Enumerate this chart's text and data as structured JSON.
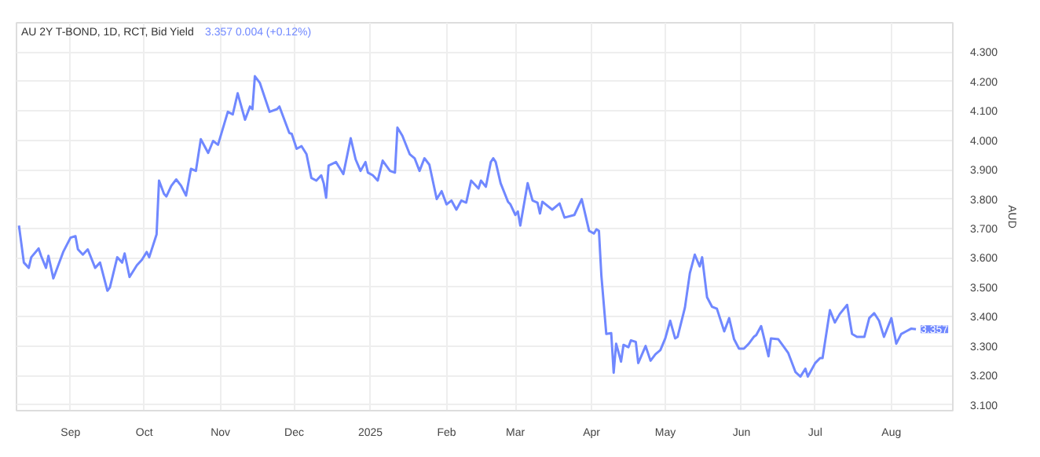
{
  "chart_data": {
    "type": "line",
    "title": "AU 2Y T-BOND, 1D, RCT, Bid Yield",
    "subtitle": "3.357  0.004 (+0.12%)",
    "ylabel": "AUD",
    "x": [
      "2024-08-11",
      "2024-08-13",
      "2024-08-15",
      "2024-08-16",
      "2024-08-19",
      "2024-08-20",
      "2024-08-22",
      "2024-08-23",
      "2024-08-25",
      "2024-08-29",
      "2024-09-01",
      "2024-09-03",
      "2024-09-04",
      "2024-09-06",
      "2024-09-08",
      "2024-09-11",
      "2024-09-13",
      "2024-09-16",
      "2024-09-17",
      "2024-09-20",
      "2024-09-22",
      "2024-09-23",
      "2024-09-25",
      "2024-09-28",
      "2024-09-30",
      "2024-10-02",
      "2024-10-03",
      "2024-10-06",
      "2024-10-07",
      "2024-10-09",
      "2024-10-10",
      "2024-10-12",
      "2024-10-14",
      "2024-10-16",
      "2024-10-18",
      "2024-10-20",
      "2024-10-22",
      "2024-10-24",
      "2024-10-27",
      "2024-10-29",
      "2024-10-31",
      "2024-11-04",
      "2024-11-06",
      "2024-11-08",
      "2024-11-11",
      "2024-11-13",
      "2024-11-14",
      "2024-11-15",
      "2024-11-17",
      "2024-11-21",
      "2024-11-24",
      "2024-11-25",
      "2024-11-29",
      "2024-11-30",
      "2024-12-02",
      "2024-12-04",
      "2024-12-06",
      "2024-12-08",
      "2024-12-10",
      "2024-12-12",
      "2024-12-13",
      "2024-12-14",
      "2024-12-15",
      "2024-12-18",
      "2024-12-20",
      "2024-12-21",
      "2024-12-24",
      "2024-12-26",
      "2024-12-28",
      "2024-12-30",
      "2024-12-31",
      "2025-01-02",
      "2025-01-04",
      "2025-01-06",
      "2025-01-09",
      "2025-01-11",
      "2025-01-12",
      "2025-01-14",
      "2025-01-17",
      "2025-01-19",
      "2025-01-21",
      "2025-01-23",
      "2025-01-25",
      "2025-01-28",
      "2025-01-30",
      "2025-02-01",
      "2025-02-03",
      "2025-02-05",
      "2025-02-07",
      "2025-02-09",
      "2025-02-11",
      "2025-02-14",
      "2025-02-15",
      "2025-02-17",
      "2025-02-19",
      "2025-02-20",
      "2025-02-21",
      "2025-02-23",
      "2025-02-26",
      "2025-02-27",
      "2025-03-01",
      "2025-03-02",
      "2025-03-03",
      "2025-03-06",
      "2025-03-08",
      "2025-03-10",
      "2025-03-11",
      "2025-03-12",
      "2025-03-16",
      "2025-03-19",
      "2025-03-21",
      "2025-03-25",
      "2025-03-28",
      "2025-03-31",
      "2025-04-02",
      "2025-04-03",
      "2025-04-04",
      "2025-04-05",
      "2025-04-07",
      "2025-04-09",
      "2025-04-10",
      "2025-04-11",
      "2025-04-13",
      "2025-04-14",
      "2025-04-16",
      "2025-04-17",
      "2025-04-19",
      "2025-04-20",
      "2025-04-23",
      "2025-04-25",
      "2025-04-27",
      "2025-04-29",
      "2025-05-01",
      "2025-05-03",
      "2025-05-05",
      "2025-05-06",
      "2025-05-09",
      "2025-05-11",
      "2025-05-13",
      "2025-05-15",
      "2025-05-16",
      "2025-05-18",
      "2025-05-20",
      "2025-05-22",
      "2025-05-25",
      "2025-05-27",
      "2025-05-29",
      "2025-05-31",
      "2025-06-02",
      "2025-06-04",
      "2025-06-06",
      "2025-06-07",
      "2025-06-09",
      "2025-06-12",
      "2025-06-13",
      "2025-06-16",
      "2025-06-18",
      "2025-06-20",
      "2025-06-23",
      "2025-06-25",
      "2025-06-27",
      "2025-06-28",
      "2025-07-01",
      "2025-07-03",
      "2025-07-04",
      "2025-07-06",
      "2025-07-07",
      "2025-07-09",
      "2025-07-11",
      "2025-07-14",
      "2025-07-16",
      "2025-07-18",
      "2025-07-21",
      "2025-07-23",
      "2025-07-25",
      "2025-07-27",
      "2025-07-29",
      "2025-08-01",
      "2025-08-03",
      "2025-08-05",
      "2025-08-07",
      "2025-08-09",
      "2025-08-11"
    ],
    "series": [
      {
        "color": "#7088ff",
        "values": [
          3.71,
          3.584,
          3.566,
          3.602,
          3.632,
          3.607,
          3.566,
          3.607,
          3.53,
          3.62,
          3.669,
          3.674,
          3.629,
          3.611,
          3.629,
          3.566,
          3.584,
          3.488,
          3.499,
          3.602,
          3.584,
          3.615,
          3.535,
          3.575,
          3.593,
          3.62,
          3.602,
          3.68,
          3.863,
          3.818,
          3.809,
          3.845,
          3.867,
          3.845,
          3.812,
          3.903,
          3.896,
          4.004,
          3.957,
          3.998,
          3.985,
          4.097,
          4.088,
          4.16,
          4.07,
          4.115,
          4.106,
          4.218,
          4.196,
          4.097,
          4.106,
          4.115,
          4.025,
          4.022,
          3.971,
          3.98,
          3.953,
          3.872,
          3.863,
          3.881,
          3.854,
          3.805,
          3.914,
          3.926,
          3.899,
          3.885,
          4.007,
          3.935,
          3.896,
          3.926,
          3.89,
          3.881,
          3.863,
          3.931,
          3.896,
          3.89,
          4.043,
          4.016,
          3.953,
          3.939,
          3.896,
          3.939,
          3.917,
          3.8,
          3.827,
          3.782,
          3.795,
          3.764,
          3.795,
          3.788,
          3.863,
          3.836,
          3.863,
          3.842,
          3.926,
          3.939,
          3.926,
          3.854,
          3.791,
          3.782,
          3.746,
          3.758,
          3.71,
          3.854,
          3.795,
          3.788,
          3.751,
          3.791,
          3.764,
          3.785,
          3.737,
          3.746,
          3.8,
          3.692,
          3.683,
          3.697,
          3.692,
          3.539,
          3.341,
          3.344,
          3.209,
          3.308,
          3.247,
          3.304,
          3.296,
          3.319,
          3.314,
          3.242,
          3.3,
          3.25,
          3.272,
          3.286,
          3.326,
          3.386,
          3.326,
          3.331,
          3.431,
          3.548,
          3.611,
          3.571,
          3.602,
          3.466,
          3.434,
          3.427,
          3.35,
          3.395,
          3.323,
          3.291,
          3.291,
          3.308,
          3.331,
          3.337,
          3.368,
          3.265,
          3.326,
          3.323,
          3.3,
          3.277,
          3.211,
          3.196,
          3.223,
          3.196,
          3.242,
          3.259,
          3.259,
          3.368,
          3.422,
          3.38,
          3.409,
          3.44,
          3.341,
          3.331,
          3.331,
          3.395,
          3.412,
          3.386,
          3.331,
          3.395,
          3.308,
          3.341,
          3.35,
          3.359,
          3.357
        ]
      }
    ],
    "xlim": [
      "2024-08-10",
      "2025-08-26"
    ],
    "xticks": [
      {
        "value": "2024-09-01",
        "label": "Sep"
      },
      {
        "value": "2024-10-01",
        "label": "Oct"
      },
      {
        "value": "2024-11-01",
        "label": "Nov"
      },
      {
        "value": "2024-12-01",
        "label": "Dec"
      },
      {
        "value": "2025-01-01",
        "label": "2025"
      },
      {
        "value": "2025-02-01",
        "label": "Feb"
      },
      {
        "value": "2025-03-01",
        "label": "Mar"
      },
      {
        "value": "2025-04-01",
        "label": "Apr"
      },
      {
        "value": "2025-05-01",
        "label": "May"
      },
      {
        "value": "2025-06-01",
        "label": "Jun"
      },
      {
        "value": "2025-07-01",
        "label": "Jul"
      },
      {
        "value": "2025-08-01",
        "label": "Aug"
      }
    ],
    "ylim": [
      3.08,
      4.4
    ],
    "yticks": [
      {
        "value": 3.1,
        "label": "3.100"
      },
      {
        "value": 3.2,
        "label": "3.200"
      },
      {
        "value": 3.3,
        "label": "3.300"
      },
      {
        "value": 3.4,
        "label": "3.400"
      },
      {
        "value": 3.5,
        "label": "3.500"
      },
      {
        "value": 3.6,
        "label": "3.600"
      },
      {
        "value": 3.7,
        "label": "3.700"
      },
      {
        "value": 3.8,
        "label": "3.800"
      },
      {
        "value": 3.9,
        "label": "3.900"
      },
      {
        "value": 4.0,
        "label": "4.000"
      },
      {
        "value": 4.1,
        "label": "4.100"
      },
      {
        "value": 4.2,
        "label": "4.200"
      },
      {
        "value": 4.3,
        "label": "4.300"
      }
    ],
    "annotations": [
      {
        "text": "3.357",
        "x": "2025-08-11",
        "y": 3.357
      }
    ],
    "grid": true,
    "marker": "none",
    "line_style": "solid"
  }
}
